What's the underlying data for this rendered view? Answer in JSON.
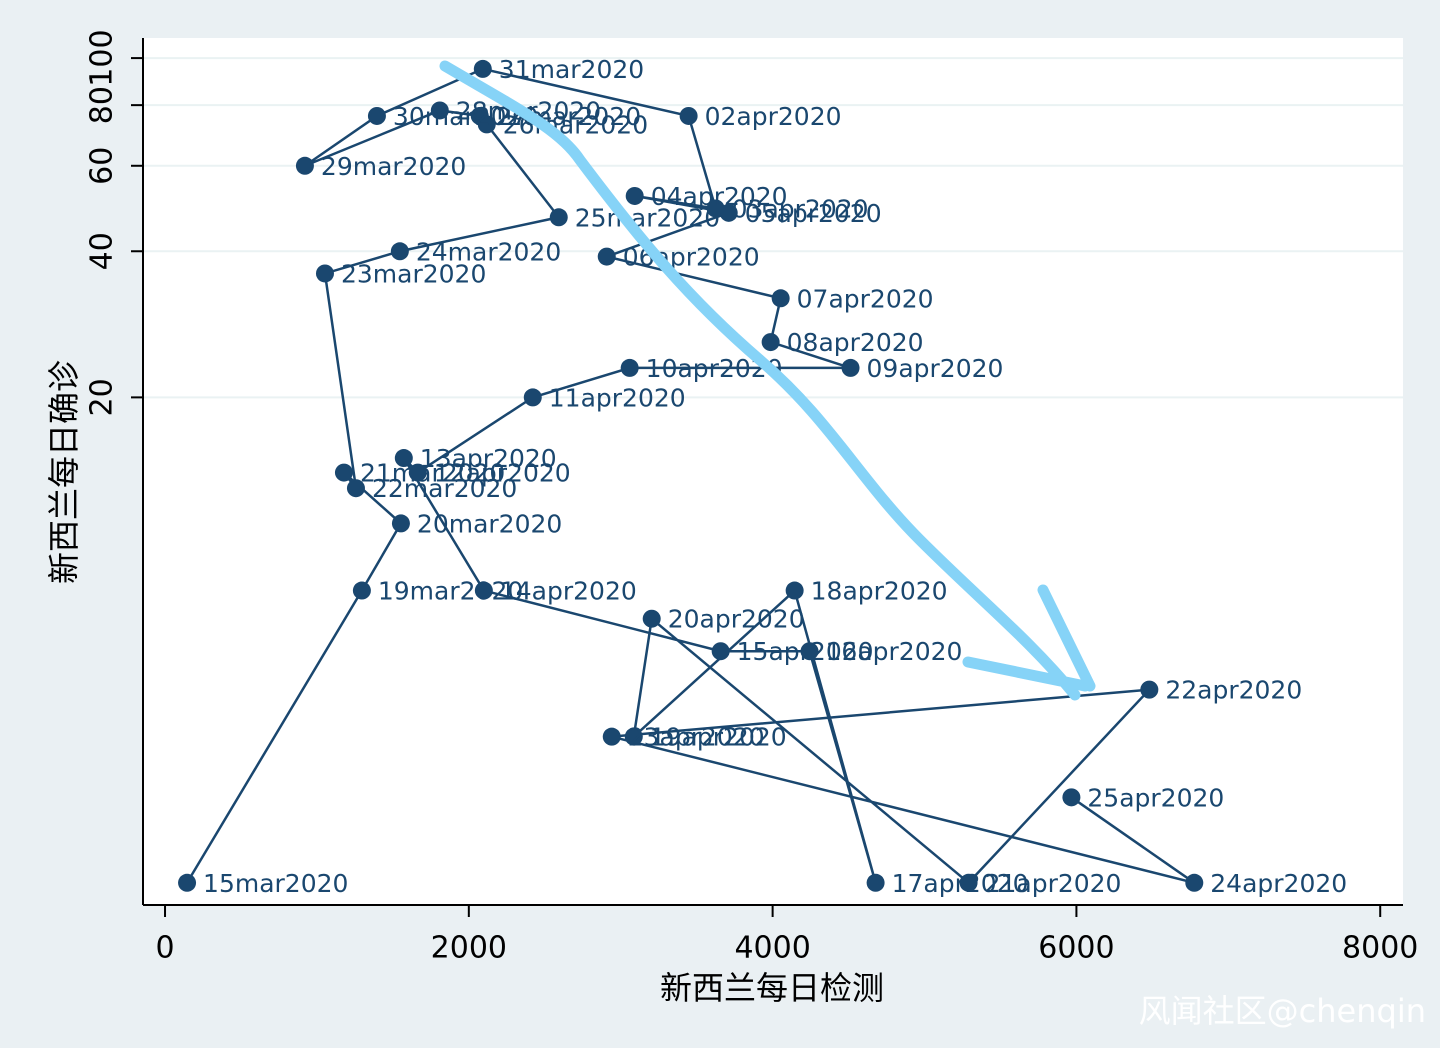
{
  "chart_data": {
    "type": "scatter",
    "connected": true,
    "x_label": "新西兰每日检测",
    "y_label": "新西兰每日确诊",
    "watermark": "风闻社区@chenqin",
    "color": "#1a476f",
    "point_labels": [
      "15mar2020",
      "19mar2020",
      "20mar2020",
      "21mar2020",
      "22mar2020",
      "23mar2020",
      "24mar2020",
      "25mar2020",
      "26mar2020",
      "27mar2020",
      "28mar2020",
      "29mar2020",
      "30mar2020",
      "31mar2020",
      "02apr2020",
      "03apr2020",
      "04apr2020",
      "05apr2020",
      "06apr2020",
      "07apr2020",
      "08apr2020",
      "09apr2020",
      "10apr2020",
      "11apr2020",
      "12apr2020",
      "13apr2020",
      "14apr2020",
      "15apr2020",
      "16apr2020",
      "17apr2020",
      "18apr2020",
      "19apr2020",
      "20apr2020",
      "21apr2020",
      "22apr2020",
      "23apr2020",
      "24apr2020",
      "25apr2020"
    ],
    "x": [
      145,
      1296,
      1553,
      1178,
      1257,
      1053,
      1546,
      2592,
      2118,
      2072,
      1809,
      921,
      1395,
      2092,
      3447,
      3625,
      3092,
      3711,
      2908,
      4053,
      3987,
      4513,
      3059,
      2421,
      1664,
      1572,
      2099,
      3658,
      4243,
      4678,
      4145,
      3086,
      3204,
      5290,
      6480,
      2941,
      6776,
      5967
    ],
    "values": [
      2,
      8,
      11,
      14,
      13,
      36,
      40,
      47,
      73,
      76,
      78,
      60,
      76,
      95,
      76,
      49,
      52,
      48,
      39,
      32,
      26,
      23,
      23,
      20,
      14,
      15,
      8,
      6,
      6,
      2,
      8,
      4,
      7,
      2,
      5,
      4,
      2,
      3
    ],
    "xlim": [
      -145,
      8150
    ],
    "xticks": [
      0,
      2000,
      4000,
      6000,
      8000
    ],
    "ylim": [
      1.8,
      110
    ],
    "yticks": [
      20,
      40,
      60,
      80,
      100
    ],
    "y_log": true,
    "grid": true
  }
}
